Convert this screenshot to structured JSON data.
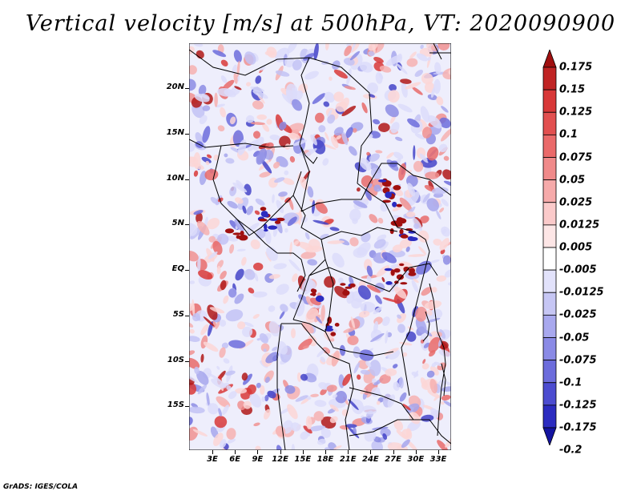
{
  "title": "Vertical velocity [m/s] at 500hPa, VT: 2020090900",
  "credit": "GrADS: IGES/COLA",
  "lat_labels": [
    "20N",
    "15N",
    "10N",
    "5N",
    "EQ",
    "5S",
    "10S",
    "15S"
  ],
  "lon_labels": [
    "3E",
    "6E",
    "9E",
    "12E",
    "15E",
    "18E",
    "21E",
    "24E",
    "27E",
    "30E",
    "33E"
  ],
  "map": {
    "region": "Central Africa",
    "lon_range": [
      0,
      35
    ],
    "lat_range": [
      -20,
      24.5
    ],
    "field": "vertical velocity",
    "level": "500hPa"
  },
  "colorbar": {
    "levels": [
      "0.175",
      "0.15",
      "0.125",
      "0.1",
      "0.075",
      "0.05",
      "0.025",
      "0.0125",
      "0.005",
      "-0.005",
      "-0.0125",
      "-0.025",
      "-0.05",
      "-0.075",
      "-0.1",
      "-0.125",
      "-0.175",
      "-0.2"
    ],
    "colors": [
      "#a01010",
      "#c02424",
      "#d83838",
      "#e25050",
      "#ea6a6a",
      "#f08a8a",
      "#f6aaaa",
      "#fbcaca",
      "#fde6e6",
      "#ffffff",
      "#e2e2fb",
      "#c6c6f4",
      "#a8a8ee",
      "#8a8ae6",
      "#6c6cdc",
      "#4c4cd0",
      "#2c2cc0",
      "#1414a0"
    ]
  }
}
